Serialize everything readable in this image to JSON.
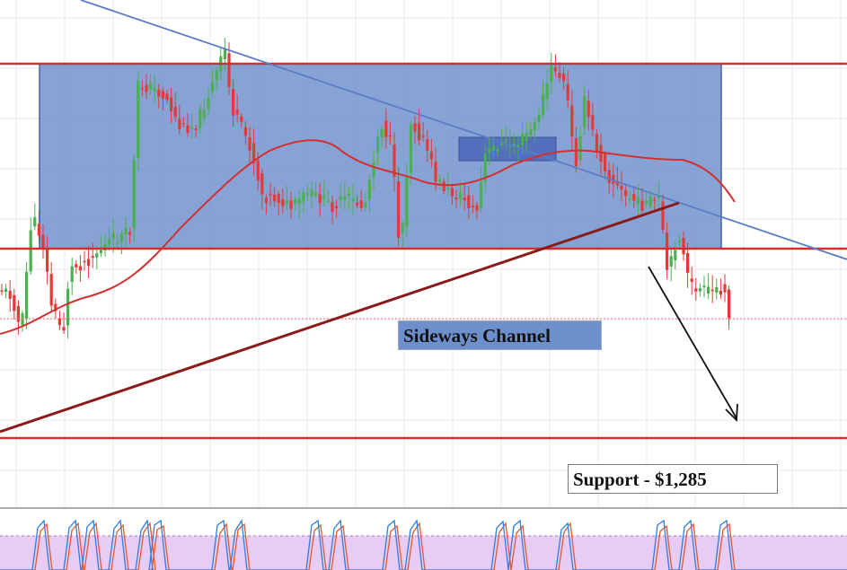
{
  "chart_data": {
    "type": "candlestick",
    "title": "",
    "instrument": "",
    "annotations": [
      {
        "kind": "text-box",
        "text": "Sideways Channel"
      },
      {
        "kind": "text-box",
        "text": "Support - $1,285"
      },
      {
        "kind": "channel-rectangle",
        "name": "Sideways Channel"
      },
      {
        "kind": "horizontal-line",
        "name": "channel top"
      },
      {
        "kind": "horizontal-line",
        "name": "channel bottom"
      },
      {
        "kind": "horizontal-line",
        "name": "support",
        "value": 1285
      },
      {
        "kind": "trendline",
        "name": "descending trendline"
      },
      {
        "kind": "trendline",
        "name": "ascending trendline"
      },
      {
        "kind": "arrow",
        "name": "projected move down"
      }
    ],
    "overlays": [
      "moving average (red)"
    ],
    "indicator_panel": "stochastic oscillator (blue and red lines)",
    "grid": true,
    "legend": "none",
    "colors": {
      "bull_candle": "#4caf50",
      "bear_candle": "#e53935",
      "channel_fill": "#6d8fcc",
      "horizontal_lines": "#d32f2f",
      "moving_average": "#d32f2f",
      "descending_trendline": "#5b7cc4",
      "ascending_trendline": "#8b1a1a",
      "stoch_k": "#2f7de1",
      "stoch_d": "#e8572c",
      "stoch_band": "#e4c8f5"
    }
  },
  "labels": {
    "channel": "Sideways Channel",
    "support": "Support - $1,285"
  }
}
